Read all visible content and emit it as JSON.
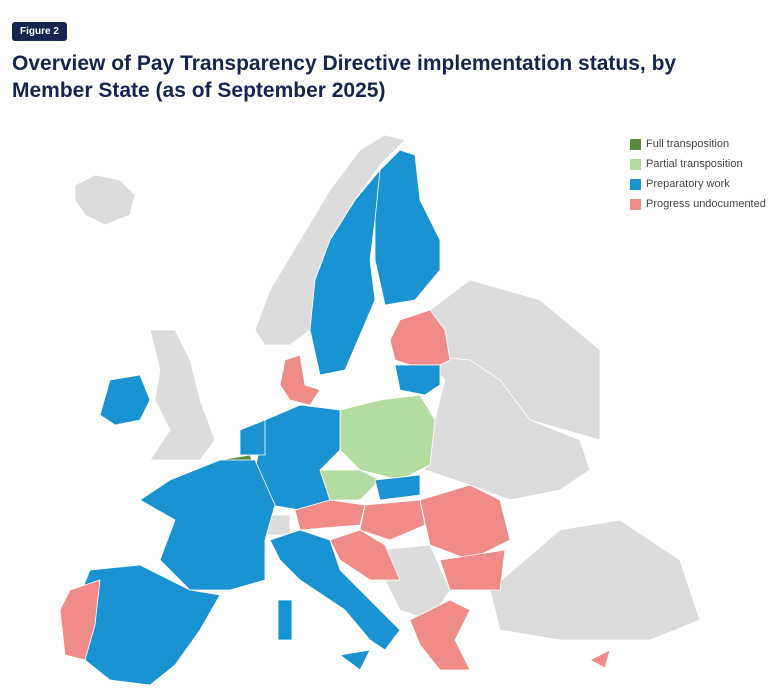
{
  "figure_label": "Figure 2",
  "title": "Overview of Pay Transparency Directive implementation status, by Member State (as of September 2025)",
  "legend": {
    "items": [
      {
        "label": "Full transposition",
        "color": "#5b8c3e"
      },
      {
        "label": "Partial transposition",
        "color": "#b4dba0"
      },
      {
        "label": "Preparatory work",
        "color": "#1a93d2"
      },
      {
        "label": "Progress undocumented",
        "color": "#f08c87"
      }
    ]
  }
}
